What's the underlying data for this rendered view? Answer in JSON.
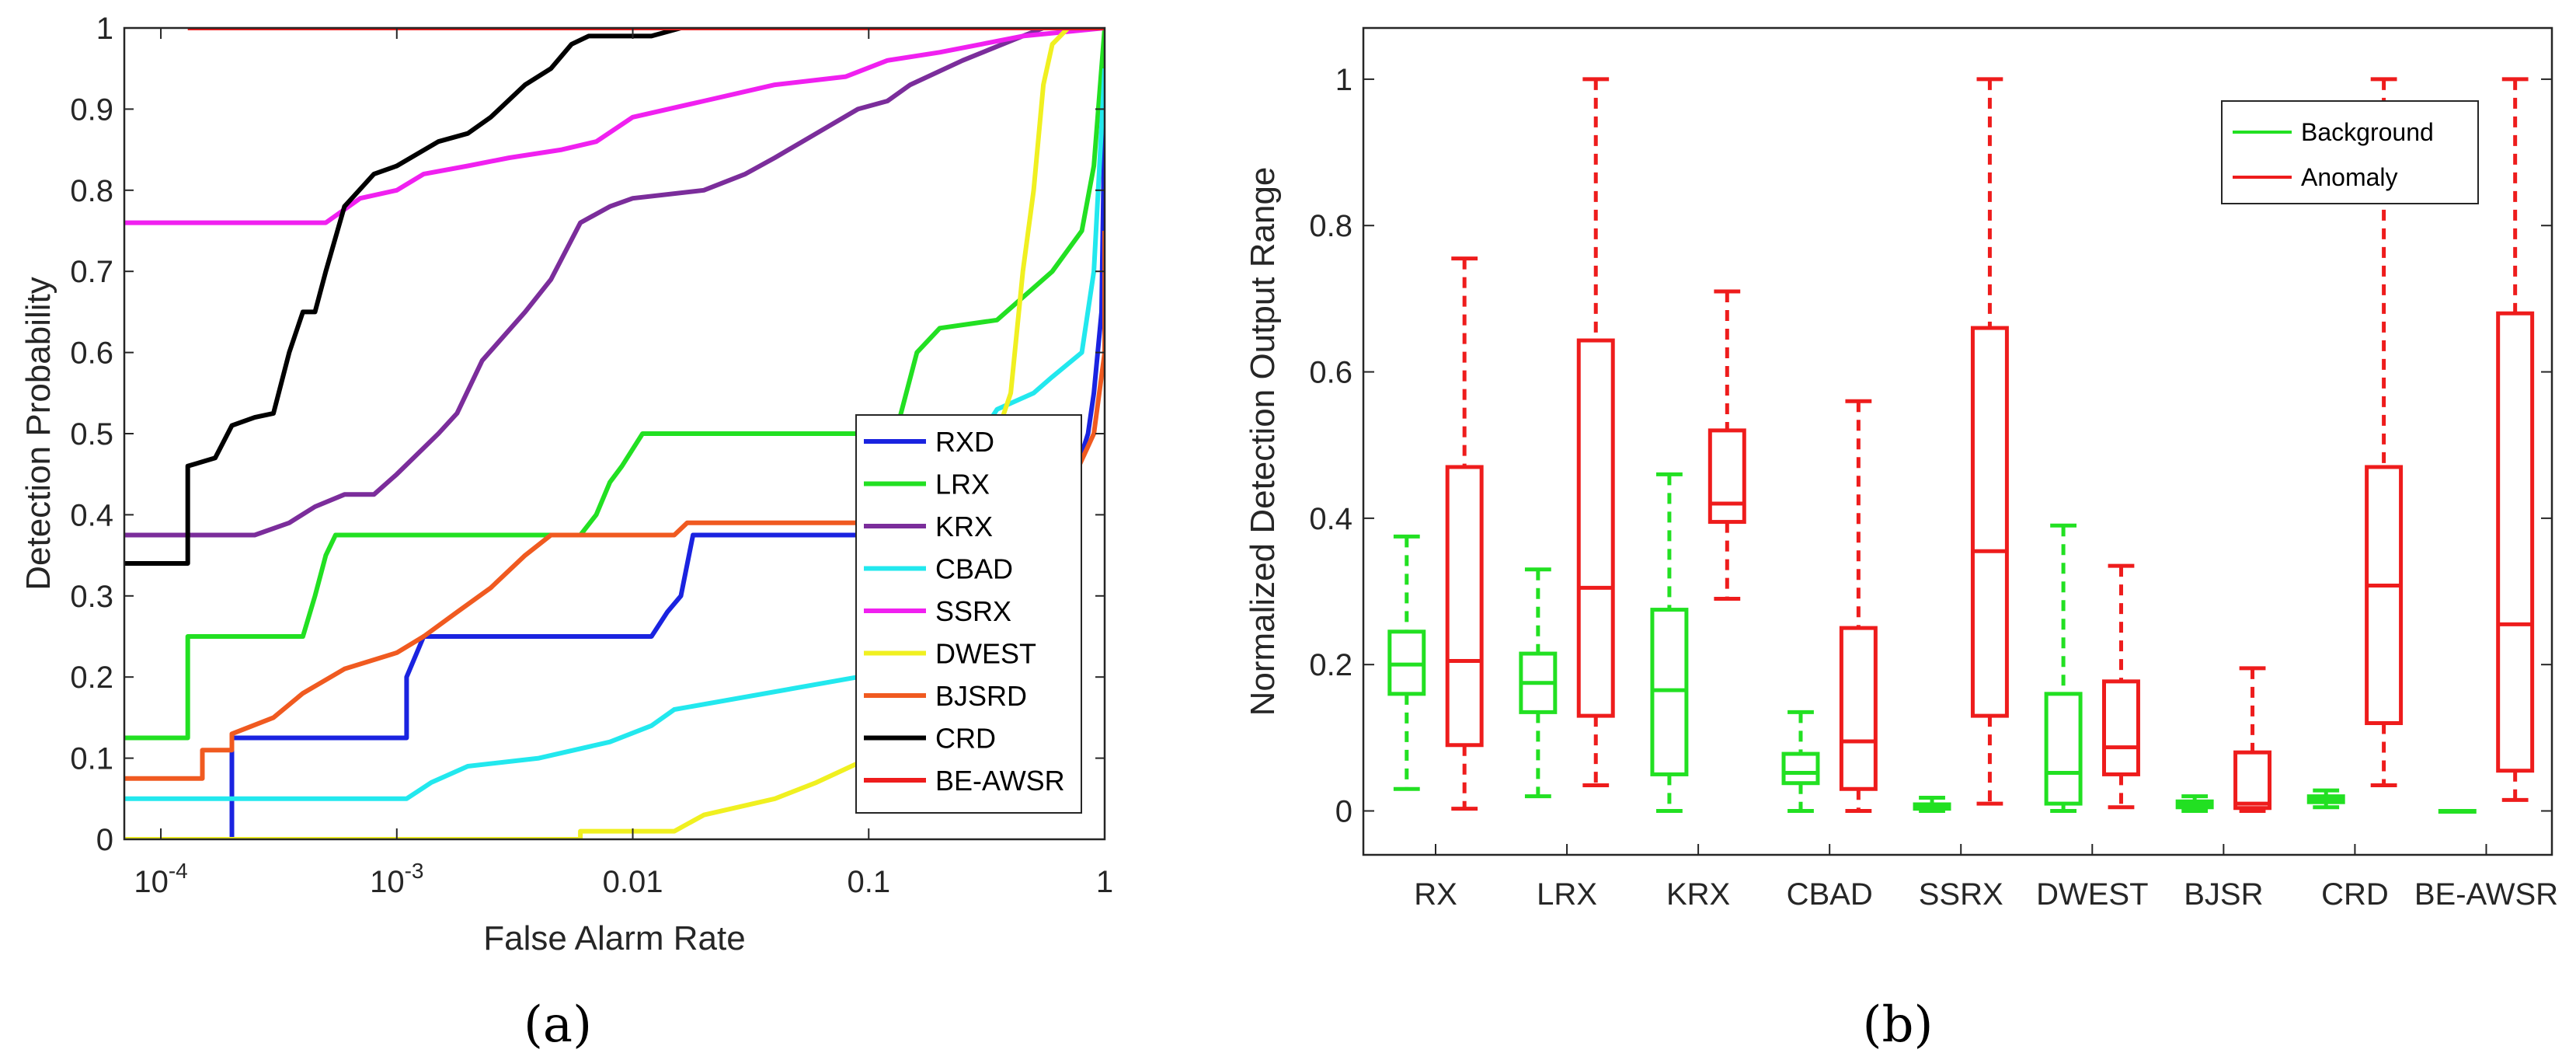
{
  "chart_data": [
    {
      "type": "line",
      "panel_label": "(a)",
      "xlabel": "False Alarm Rate",
      "ylabel": "Detection Probability",
      "xscale": "log",
      "xlim": [
        7e-05,
        1
      ],
      "ylim": [
        0,
        1
      ],
      "x_ticks": [
        {
          "value": 0.0001,
          "base": "10",
          "exp": "-4"
        },
        {
          "value": 0.001,
          "base": "10",
          "exp": "-3"
        },
        {
          "value": 0.01,
          "label": "0.01"
        },
        {
          "value": 0.1,
          "label": "0.1"
        },
        {
          "value": 1,
          "label": "1"
        }
      ],
      "y_ticks": [
        "0",
        "0.1",
        "0.2",
        "0.3",
        "0.4",
        "0.5",
        "0.6",
        "0.7",
        "0.8",
        "0.9",
        "1"
      ],
      "legend_position": "lower-right",
      "series": [
        {
          "name": "RXD",
          "color": "#1a23e0",
          "points": [
            [
              7e-05,
              0
            ],
            [
              0.0002,
              0
            ],
            [
              0.0002,
              0.125
            ],
            [
              0.0011,
              0.125
            ],
            [
              0.0011,
              0.2
            ],
            [
              0.0013,
              0.25
            ],
            [
              0.012,
              0.25
            ],
            [
              0.014,
              0.28
            ],
            [
              0.016,
              0.3
            ],
            [
              0.018,
              0.375
            ],
            [
              0.6,
              0.375
            ],
            [
              0.75,
              0.45
            ],
            [
              0.85,
              0.5
            ],
            [
              0.9,
              0.55
            ],
            [
              0.97,
              0.65
            ],
            [
              1,
              0.9
            ],
            [
              1,
              1
            ]
          ]
        },
        {
          "name": "LRX",
          "color": "#22e022",
          "points": [
            [
              7e-05,
              0.125
            ],
            [
              0.00013,
              0.125
            ],
            [
              0.00013,
              0.25
            ],
            [
              0.0004,
              0.25
            ],
            [
              0.00045,
              0.3
            ],
            [
              0.0005,
              0.35
            ],
            [
              0.00055,
              0.375
            ],
            [
              0.006,
              0.375
            ],
            [
              0.007,
              0.4
            ],
            [
              0.008,
              0.44
            ],
            [
              0.009,
              0.46
            ],
            [
              0.011,
              0.5
            ],
            [
              0.13,
              0.5
            ],
            [
              0.16,
              0.6
            ],
            [
              0.2,
              0.63
            ],
            [
              0.35,
              0.64
            ],
            [
              0.6,
              0.7
            ],
            [
              0.8,
              0.75
            ],
            [
              0.9,
              0.83
            ],
            [
              1,
              1
            ]
          ]
        },
        {
          "name": "KRX",
          "color": "#7b2d9b",
          "points": [
            [
              7e-05,
              0.375
            ],
            [
              0.00025,
              0.375
            ],
            [
              0.00035,
              0.39
            ],
            [
              0.00045,
              0.41
            ],
            [
              0.0006,
              0.425
            ],
            [
              0.0008,
              0.425
            ],
            [
              0.001,
              0.45
            ],
            [
              0.0015,
              0.5
            ],
            [
              0.0018,
              0.525
            ],
            [
              0.0023,
              0.59
            ],
            [
              0.0035,
              0.65
            ],
            [
              0.0045,
              0.69
            ],
            [
              0.006,
              0.76
            ],
            [
              0.008,
              0.78
            ],
            [
              0.01,
              0.79
            ],
            [
              0.02,
              0.8
            ],
            [
              0.03,
              0.82
            ],
            [
              0.04,
              0.84
            ],
            [
              0.06,
              0.87
            ],
            [
              0.09,
              0.9
            ],
            [
              0.12,
              0.91
            ],
            [
              0.15,
              0.93
            ],
            [
              0.25,
              0.96
            ],
            [
              0.45,
              0.99
            ],
            [
              0.55,
              1
            ],
            [
              1,
              1
            ]
          ]
        },
        {
          "name": "CBAD",
          "color": "#22e8ee",
          "points": [
            [
              7e-05,
              0.05
            ],
            [
              0.0011,
              0.05
            ],
            [
              0.0014,
              0.07
            ],
            [
              0.002,
              0.09
            ],
            [
              0.004,
              0.1
            ],
            [
              0.008,
              0.12
            ],
            [
              0.012,
              0.14
            ],
            [
              0.015,
              0.16
            ],
            [
              0.09,
              0.2
            ],
            [
              0.12,
              0.22
            ],
            [
              0.2,
              0.3
            ],
            [
              0.3,
              0.5
            ],
            [
              0.35,
              0.53
            ],
            [
              0.5,
              0.55
            ],
            [
              0.6,
              0.57
            ],
            [
              0.8,
              0.6
            ],
            [
              0.9,
              0.7
            ],
            [
              1,
              0.95
            ]
          ]
        },
        {
          "name": "SSRX",
          "color": "#f020f0",
          "points": [
            [
              7e-05,
              0.76
            ],
            [
              0.0005,
              0.76
            ],
            [
              0.0007,
              0.79
            ],
            [
              0.001,
              0.8
            ],
            [
              0.0013,
              0.82
            ],
            [
              0.002,
              0.83
            ],
            [
              0.003,
              0.84
            ],
            [
              0.005,
              0.85
            ],
            [
              0.007,
              0.86
            ],
            [
              0.01,
              0.89
            ],
            [
              0.02,
              0.91
            ],
            [
              0.04,
              0.93
            ],
            [
              0.08,
              0.94
            ],
            [
              0.12,
              0.96
            ],
            [
              0.2,
              0.97
            ],
            [
              0.3,
              0.98
            ],
            [
              0.45,
              0.99
            ],
            [
              1,
              1
            ]
          ]
        },
        {
          "name": "DWEST",
          "color": "#f0f020",
          "points": [
            [
              7e-05,
              0
            ],
            [
              0.006,
              0
            ],
            [
              0.006,
              0.01
            ],
            [
              0.015,
              0.01
            ],
            [
              0.02,
              0.03
            ],
            [
              0.04,
              0.05
            ],
            [
              0.06,
              0.07
            ],
            [
              0.1,
              0.1
            ],
            [
              0.15,
              0.15
            ],
            [
              0.25,
              0.3
            ],
            [
              0.35,
              0.5
            ],
            [
              0.4,
              0.55
            ],
            [
              0.45,
              0.7
            ],
            [
              0.5,
              0.8
            ],
            [
              0.55,
              0.93
            ],
            [
              0.6,
              0.98
            ],
            [
              0.7,
              1
            ],
            [
              1,
              1
            ]
          ]
        },
        {
          "name": "BJSRD",
          "color": "#f05a20",
          "points": [
            [
              7e-05,
              0.075
            ],
            [
              0.00015,
              0.075
            ],
            [
              0.00015,
              0.11
            ],
            [
              0.0002,
              0.11
            ],
            [
              0.0002,
              0.13
            ],
            [
              0.0003,
              0.15
            ],
            [
              0.0004,
              0.18
            ],
            [
              0.0006,
              0.21
            ],
            [
              0.001,
              0.23
            ],
            [
              0.0013,
              0.25
            ],
            [
              0.0018,
              0.28
            ],
            [
              0.0025,
              0.31
            ],
            [
              0.0035,
              0.35
            ],
            [
              0.0045,
              0.375
            ],
            [
              0.015,
              0.375
            ],
            [
              0.017,
              0.39
            ],
            [
              0.6,
              0.39
            ],
            [
              0.75,
              0.45
            ],
            [
              0.9,
              0.5
            ],
            [
              1,
              0.6
            ],
            [
              1,
              0.75
            ]
          ]
        },
        {
          "name": "CRD",
          "color": "#000000",
          "points": [
            [
              7e-05,
              0.34
            ],
            [
              0.00013,
              0.34
            ],
            [
              0.00013,
              0.46
            ],
            [
              0.00017,
              0.47
            ],
            [
              0.0002,
              0.51
            ],
            [
              0.00025,
              0.52
            ],
            [
              0.0003,
              0.525
            ],
            [
              0.00035,
              0.6
            ],
            [
              0.0004,
              0.65
            ],
            [
              0.00045,
              0.65
            ],
            [
              0.0005,
              0.7
            ],
            [
              0.0006,
              0.78
            ],
            [
              0.0008,
              0.82
            ],
            [
              0.001,
              0.83
            ],
            [
              0.0015,
              0.86
            ],
            [
              0.002,
              0.87
            ],
            [
              0.0025,
              0.89
            ],
            [
              0.0035,
              0.93
            ],
            [
              0.0045,
              0.95
            ],
            [
              0.0055,
              0.98
            ],
            [
              0.0065,
              0.99
            ],
            [
              0.012,
              0.99
            ],
            [
              0.016,
              1
            ],
            [
              1,
              1
            ]
          ]
        },
        {
          "name": "BE-AWSR",
          "color": "#ee1c1c",
          "points": [
            [
              0.00013,
              1
            ],
            [
              1,
              1
            ]
          ]
        }
      ]
    },
    {
      "type": "boxplot",
      "panel_label": "(b)",
      "xlabel": "",
      "ylabel": "Normalized Detection Output Range",
      "ylim": [
        -0.06,
        1.07
      ],
      "y_ticks": [
        "0",
        "0.2",
        "0.4",
        "0.6",
        "0.8",
        "1"
      ],
      "categories": [
        "RX",
        "LRX",
        "KRX",
        "CBAD",
        "SSRX",
        "DWEST",
        "BJSR",
        "CRD",
        "BE-AWSR"
      ],
      "legend_position": "top-right",
      "series": [
        {
          "name": "Background",
          "color": "#22e022",
          "boxes": [
            {
              "min": 0.03,
              "q1": 0.16,
              "median": 0.2,
              "q3": 0.245,
              "max": 0.375
            },
            {
              "min": 0.02,
              "q1": 0.135,
              "median": 0.175,
              "q3": 0.215,
              "max": 0.33
            },
            {
              "min": 0.0,
              "q1": 0.05,
              "median": 0.165,
              "q3": 0.275,
              "max": 0.46
            },
            {
              "min": 0.0,
              "q1": 0.038,
              "median": 0.052,
              "q3": 0.078,
              "max": 0.135
            },
            {
              "min": 0.0,
              "q1": 0.003,
              "median": 0.006,
              "q3": 0.009,
              "max": 0.018
            },
            {
              "min": 0.0,
              "q1": 0.01,
              "median": 0.052,
              "q3": 0.16,
              "max": 0.39
            },
            {
              "min": 0.0,
              "q1": 0.005,
              "median": 0.009,
              "q3": 0.013,
              "max": 0.02
            },
            {
              "min": 0.005,
              "q1": 0.012,
              "median": 0.016,
              "q3": 0.02,
              "max": 0.028
            },
            {
              "min": 0.0,
              "q1": 0.0,
              "median": 0.0,
              "q3": 0.0,
              "max": 0.0
            }
          ]
        },
        {
          "name": "Anomaly",
          "color": "#ee1c1c",
          "boxes": [
            {
              "min": 0.003,
              "q1": 0.09,
              "median": 0.205,
              "q3": 0.47,
              "max": 0.755
            },
            {
              "min": 0.035,
              "q1": 0.13,
              "median": 0.305,
              "q3": 0.643,
              "max": 1.0
            },
            {
              "min": 0.29,
              "q1": 0.395,
              "median": 0.42,
              "q3": 0.52,
              "max": 0.71
            },
            {
              "min": 0.0,
              "q1": 0.03,
              "median": 0.095,
              "q3": 0.25,
              "max": 0.56
            },
            {
              "min": 0.01,
              "q1": 0.13,
              "median": 0.355,
              "q3": 0.66,
              "max": 1.0
            },
            {
              "min": 0.005,
              "q1": 0.05,
              "median": 0.087,
              "q3": 0.177,
              "max": 0.335
            },
            {
              "min": 0.0,
              "q1": 0.004,
              "median": 0.01,
              "q3": 0.08,
              "max": 0.195
            },
            {
              "min": 0.035,
              "q1": 0.12,
              "median": 0.308,
              "q3": 0.47,
              "max": 1.0
            },
            {
              "min": 0.015,
              "q1": 0.055,
              "median": 0.255,
              "q3": 0.68,
              "max": 1.0
            }
          ]
        }
      ]
    }
  ]
}
